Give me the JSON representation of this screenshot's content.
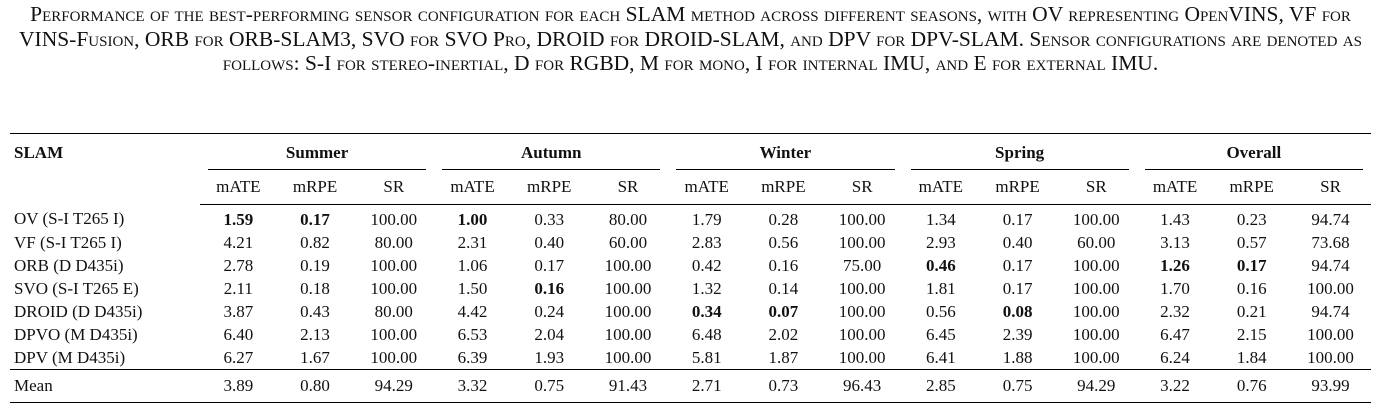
{
  "caption": "Performance of the best-performing sensor configuration for each SLAM method across different seasons, with OV representing OpenVINS, VF for VINS-Fusion, ORB for ORB-SLAM3, SVO for SVO Pro, DROID for DROID-SLAM, and DPV for DPV-SLAM. Sensor configurations are denoted as follows: S-I for stereo-inertial, D for RGBD, M for mono, I for internal IMU, and E for external IMU.",
  "table": {
    "first_header": "SLAM",
    "groups": [
      "Summer",
      "Autumn",
      "Winter",
      "Spring",
      "Overall"
    ],
    "subheaders": [
      "mATE",
      "mRPE",
      "SR"
    ],
    "rows": [
      [
        "OV (S-I T265 I)",
        "1.59",
        "0.17",
        "100.00",
        "1.00",
        "0.33",
        "80.00",
        "1.79",
        "0.28",
        "100.00",
        "1.34",
        "0.17",
        "100.00",
        "1.43",
        "0.23",
        "94.74"
      ],
      [
        "VF (S-I T265 I)",
        "4.21",
        "0.82",
        "80.00",
        "2.31",
        "0.40",
        "60.00",
        "2.83",
        "0.56",
        "100.00",
        "2.93",
        "0.40",
        "60.00",
        "3.13",
        "0.57",
        "73.68"
      ],
      [
        "ORB (D D435i)",
        "2.78",
        "0.19",
        "100.00",
        "1.06",
        "0.17",
        "100.00",
        "0.42",
        "0.16",
        "75.00",
        "0.46",
        "0.17",
        "100.00",
        "1.26",
        "0.17",
        "94.74"
      ],
      [
        "SVO (S-I T265 E)",
        "2.11",
        "0.18",
        "100.00",
        "1.50",
        "0.16",
        "100.00",
        "1.32",
        "0.14",
        "100.00",
        "1.81",
        "0.17",
        "100.00",
        "1.70",
        "0.16",
        "100.00"
      ],
      [
        "DROID (D D435i)",
        "3.87",
        "0.43",
        "80.00",
        "4.42",
        "0.24",
        "100.00",
        "0.34",
        "0.07",
        "100.00",
        "0.56",
        "0.08",
        "100.00",
        "2.32",
        "0.21",
        "94.74"
      ],
      [
        "DPVO (M D435i)",
        "6.40",
        "2.13",
        "100.00",
        "6.53",
        "2.04",
        "100.00",
        "6.48",
        "2.02",
        "100.00",
        "6.45",
        "2.39",
        "100.00",
        "6.47",
        "2.15",
        "100.00"
      ],
      [
        "DPV (M D435i)",
        "6.27",
        "1.67",
        "100.00",
        "6.39",
        "1.93",
        "100.00",
        "5.81",
        "1.87",
        "100.00",
        "6.41",
        "1.88",
        "100.00",
        "6.24",
        "1.84",
        "100.00"
      ]
    ],
    "footer": [
      "Mean",
      "3.89",
      "0.80",
      "94.29",
      "3.32",
      "0.75",
      "91.43",
      "2.71",
      "0.73",
      "96.43",
      "2.85",
      "0.75",
      "94.29",
      "3.22",
      "0.76",
      "93.99"
    ],
    "bold": [
      [
        0,
        1
      ],
      [
        0,
        2
      ],
      [
        0,
        4
      ],
      [
        2,
        10
      ],
      [
        2,
        13
      ],
      [
        2,
        14
      ],
      [
        3,
        5
      ],
      [
        4,
        7
      ],
      [
        4,
        8
      ],
      [
        4,
        11
      ]
    ]
  }
}
